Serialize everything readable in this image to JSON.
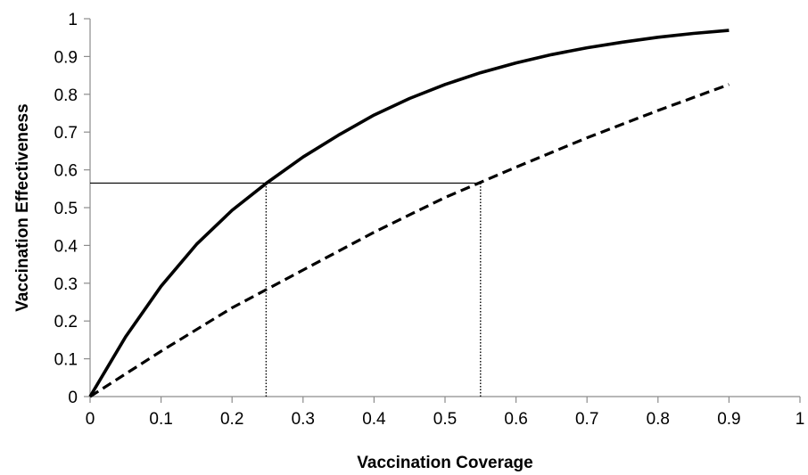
{
  "chart_data": {
    "type": "line",
    "title": "",
    "xlabel": "Vaccination Coverage",
    "ylabel": "Vaccination Effectiveness",
    "xlim": [
      0,
      1
    ],
    "ylim": [
      0,
      1
    ],
    "xticks": [
      0,
      0.1,
      0.2,
      0.3,
      0.4,
      0.5,
      0.6,
      0.7,
      0.8,
      0.9,
      1
    ],
    "yticks": [
      0,
      0.1,
      0.2,
      0.3,
      0.4,
      0.5,
      0.6,
      0.7,
      0.8,
      0.9,
      1
    ],
    "xtick_labels": [
      "0",
      "0.1",
      "0.2",
      "0.3",
      "0.4",
      "0.5",
      "0.6",
      "0.7",
      "0.8",
      "0.9",
      "1"
    ],
    "ytick_labels": [
      "0",
      "0.1",
      "0.2",
      "0.3",
      "0.4",
      "0.5",
      "0.6",
      "0.7",
      "0.8",
      "0.9",
      "1"
    ],
    "grid": false,
    "legend": "none",
    "series": [
      {
        "style": "solid",
        "color": "#000000",
        "x": [
          0,
          0.05,
          0.1,
          0.15,
          0.2,
          0.25,
          0.3,
          0.35,
          0.4,
          0.45,
          0.5,
          0.55,
          0.6,
          0.65,
          0.7,
          0.75,
          0.8,
          0.85,
          0.9
        ],
        "y": [
          0,
          0.158,
          0.292,
          0.403,
          0.493,
          0.567,
          0.634,
          0.692,
          0.745,
          0.789,
          0.826,
          0.857,
          0.883,
          0.905,
          0.923,
          0.938,
          0.951,
          0.961,
          0.969
        ]
      },
      {
        "style": "dashed",
        "color": "#000000",
        "x": [
          0,
          0.1,
          0.2,
          0.3,
          0.4,
          0.5,
          0.55,
          0.6,
          0.7,
          0.8,
          0.9
        ],
        "y": [
          0,
          0.12,
          0.235,
          0.335,
          0.435,
          0.527,
          0.567,
          0.607,
          0.685,
          0.757,
          0.826
        ]
      }
    ],
    "reference_lines": [
      {
        "orientation": "horizontal",
        "style": "solid-thin",
        "y": 0.565,
        "from_x": 0,
        "to_x": 0.55
      },
      {
        "orientation": "vertical",
        "style": "dotted",
        "x": 0.248,
        "from_y": 0,
        "to_y": 0.565
      },
      {
        "orientation": "vertical",
        "style": "dotted",
        "x": 0.55,
        "from_y": 0,
        "to_y": 0.565
      }
    ]
  }
}
